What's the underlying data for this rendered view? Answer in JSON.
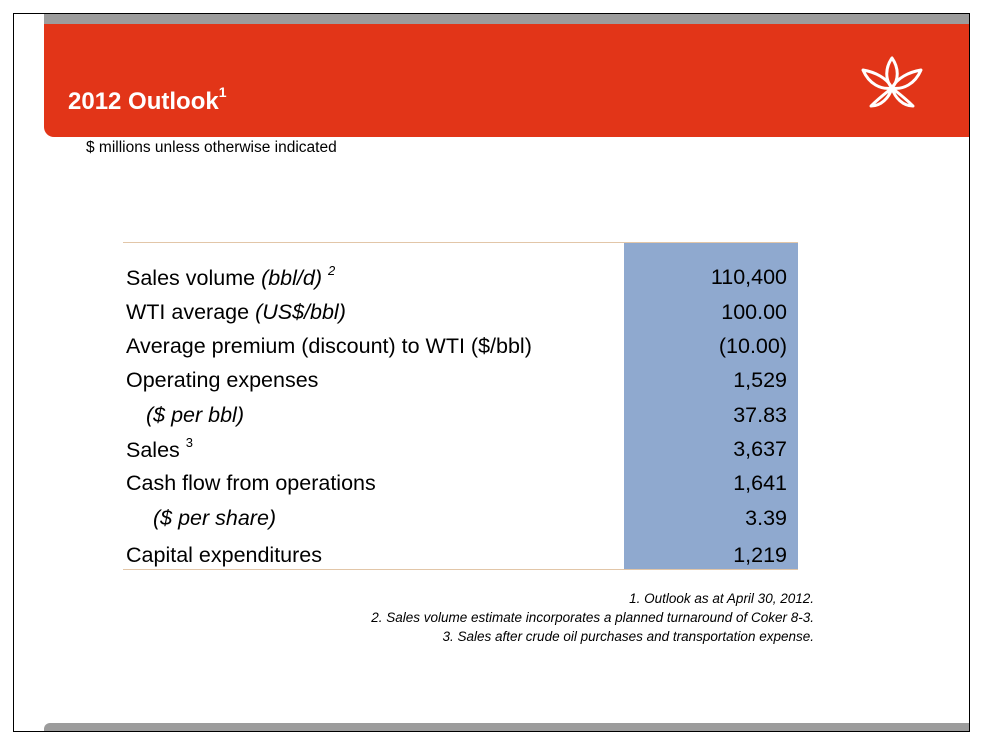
{
  "slide": {
    "title": "2012 Outlook",
    "title_superscript": "1",
    "subtitle": "$ millions unless otherwise indicated",
    "brand_color": "#e23518",
    "value_column_color": "#8fa9cf"
  },
  "table": {
    "rows": [
      {
        "label": "Sales volume",
        "label_unit": "(bbl/d)",
        "note": "2",
        "value": "110,400",
        "indent": 0
      },
      {
        "label": "WTI average",
        "label_unit": "(US$/bbl)",
        "note": "",
        "value": "100.00",
        "indent": 0
      },
      {
        "label": "Average premium (discount) to WTI ($/bbl)",
        "label_unit": "",
        "note": "",
        "value": "(10.00)",
        "indent": 0
      },
      {
        "label": "Operating expenses",
        "label_unit": "",
        "note": "",
        "value": "1,529",
        "indent": 0
      },
      {
        "label": "",
        "label_unit": "($ per bbl)",
        "note": "",
        "value": "37.83",
        "indent": 1
      },
      {
        "label": "Sales",
        "label_unit": "",
        "note": "3",
        "value": "3,637",
        "indent": 0
      },
      {
        "label": "Cash flow from operations",
        "label_unit": "",
        "note": "",
        "value": "1,641",
        "indent": 0
      },
      {
        "label": "",
        "label_unit": "($ per share)",
        "note": "",
        "value": "3.39",
        "indent": 2
      },
      {
        "label": "Capital expenditures",
        "label_unit": "",
        "note": "",
        "value": "1,219",
        "indent": 0
      }
    ]
  },
  "footnotes": [
    "1.  Outlook as at April 30, 2012.",
    "2. Sales volume estimate incorporates a planned turnaround of Coker 8-3.",
    "3. Sales after crude oil purchases and transportation expense."
  ],
  "icons": {
    "logo": "flower-logo-icon"
  }
}
